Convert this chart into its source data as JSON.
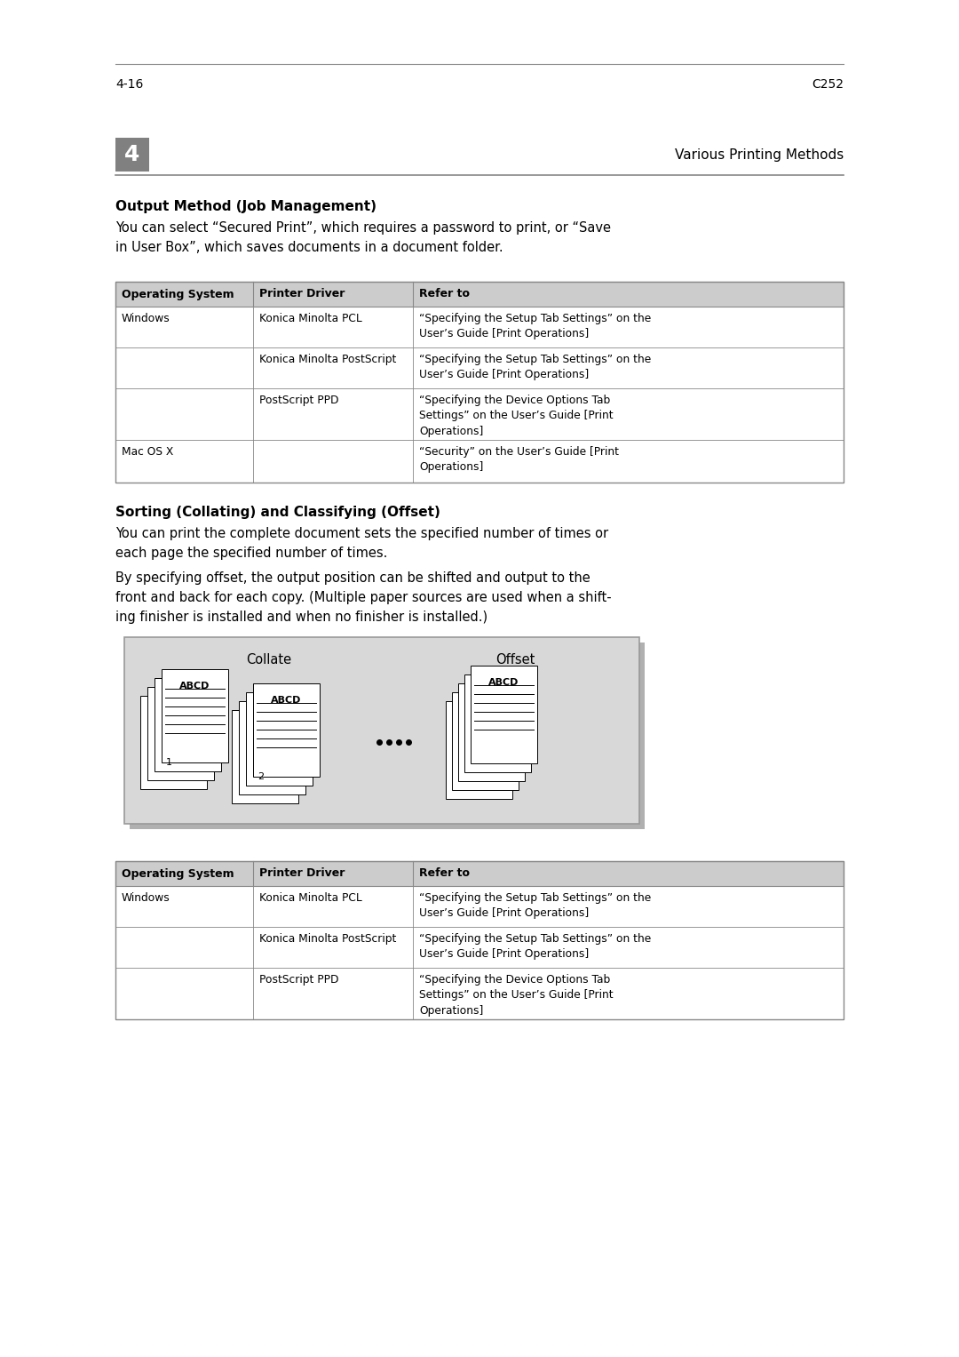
{
  "page_num": "4",
  "header_right": "Various Printing Methods",
  "footer_left": "4-16",
  "footer_right": "C252",
  "section1_title": "Output Method (Job Management)",
  "section1_body1": "You can select “Secured Print”, which requires a password to print, or “Save\nin User Box”, which saves documents in a document folder.",
  "table1_headers": [
    "Operating System",
    "Printer Driver",
    "Refer to"
  ],
  "table1_rows": [
    [
      "Windows",
      "Konica Minolta PCL",
      "“Specifying the Setup Tab Settings” on the\nUser’s Guide [Print Operations]"
    ],
    [
      "",
      "Konica Minolta PostScript",
      "“Specifying the Setup Tab Settings” on the\nUser’s Guide [Print Operations]"
    ],
    [
      "",
      "PostScript PPD",
      "“Specifying the Device Options Tab\nSettings” on the User’s Guide [Print\nOperations]"
    ],
    [
      "Mac OS X",
      "",
      "“Security” on the User’s Guide [Print\nOperations]"
    ]
  ],
  "section2_title": "Sorting (Collating) and Classifying (Offset)",
  "section2_body1": "You can print the complete document sets the specified number of times or\neach page the specified number of times.",
  "section2_body2": "By specifying offset, the output position can be shifted and output to the\nfront and back for each copy. (Multiple paper sources are used when a shift-\ning finisher is installed and when no finisher is installed.)",
  "collate_label": "Collate",
  "offset_label": "Offset",
  "table2_headers": [
    "Operating System",
    "Printer Driver",
    "Refer to"
  ],
  "table2_rows": [
    [
      "Windows",
      "Konica Minolta PCL",
      "“Specifying the Setup Tab Settings” on the\nUser’s Guide [Print Operations]"
    ],
    [
      "",
      "Konica Minolta PostScript",
      "“Specifying the Setup Tab Settings” on the\nUser’s Guide [Print Operations]"
    ],
    [
      "",
      "PostScript PPD",
      "“Specifying the Device Options Tab\nSettings” on the User’s Guide [Print\nOperations]"
    ]
  ],
  "bg_color": "#ffffff",
  "table_header_bg": "#cccccc",
  "table_border": "#888888",
  "diagram_bg": "#d8d8d8",
  "diagram_border": "#999999",
  "header_box_color": "#808080"
}
